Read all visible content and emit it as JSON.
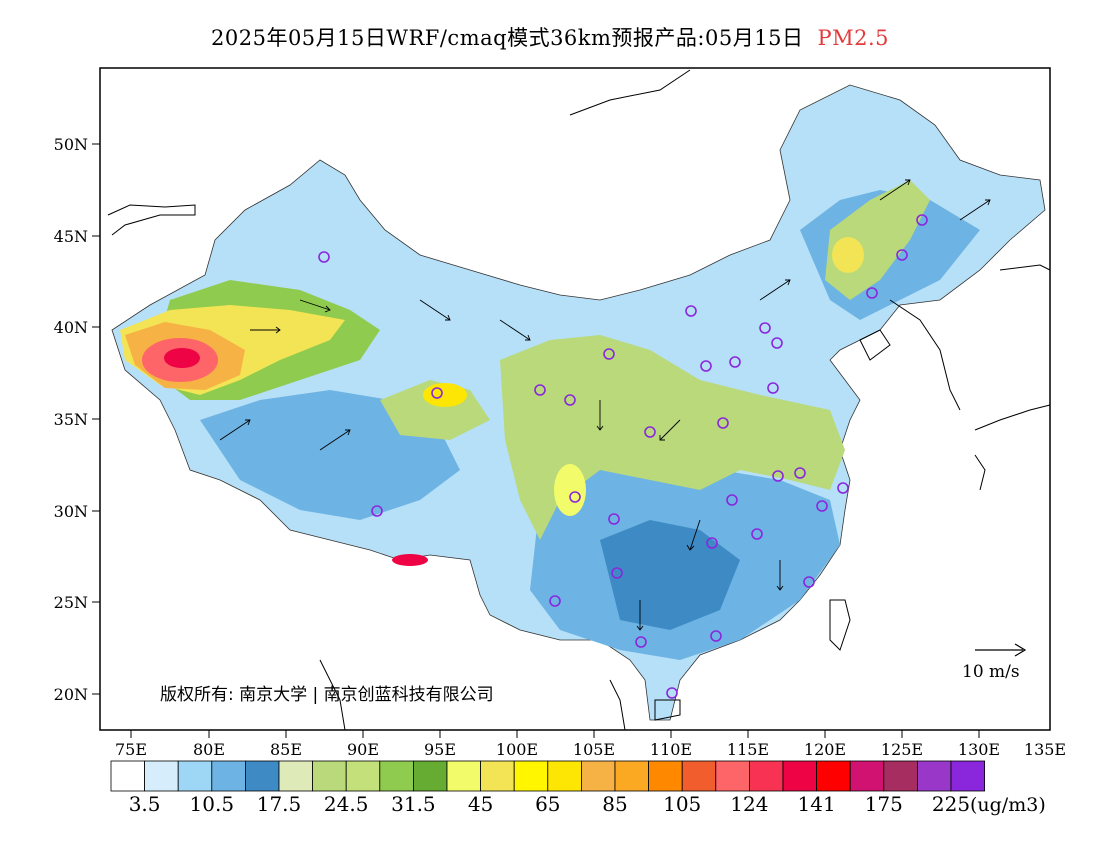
{
  "title": {
    "main": "2025年05月15日WRF/cmaq模式36km预报产品:05月15日",
    "pollutant": "PM2.5"
  },
  "map": {
    "lat_labels": [
      "50N",
      "45N",
      "40N",
      "35N",
      "30N",
      "25N",
      "20N"
    ],
    "lon_labels": [
      "75E",
      "80E",
      "85E",
      "90E",
      "95E",
      "100E",
      "105E",
      "110E",
      "115E",
      "120E",
      "125E",
      "130E",
      "135E"
    ],
    "copyright": "版权所有: 南京大学 | 南京创蓝科技有限公司",
    "wind_reference": "10 m/s"
  },
  "colorbar": {
    "colors": [
      "#ffffff",
      "#d6eefb",
      "#9dd7f5",
      "#6db3e3",
      "#3e8ac5",
      "#dfeab9",
      "#b9d97a",
      "#c3e07a",
      "#8fcb4e",
      "#66ab32",
      "#f2fb6a",
      "#f2e454",
      "#fff600",
      "#fde603",
      "#f7b245",
      "#fba823",
      "#fe8900",
      "#f25d2e",
      "#fe6568",
      "#f73253",
      "#ee0344",
      "#fe0000",
      "#d21270",
      "#a52d5f",
      "#9937c9",
      "#8a27dd"
    ],
    "labels": [
      "3.5",
      "10.5",
      "17.5",
      "24.5",
      "31.5",
      "45",
      "65",
      "85",
      "105",
      "124",
      "141",
      "175",
      "225"
    ],
    "unit": "(ug/m3)"
  }
}
